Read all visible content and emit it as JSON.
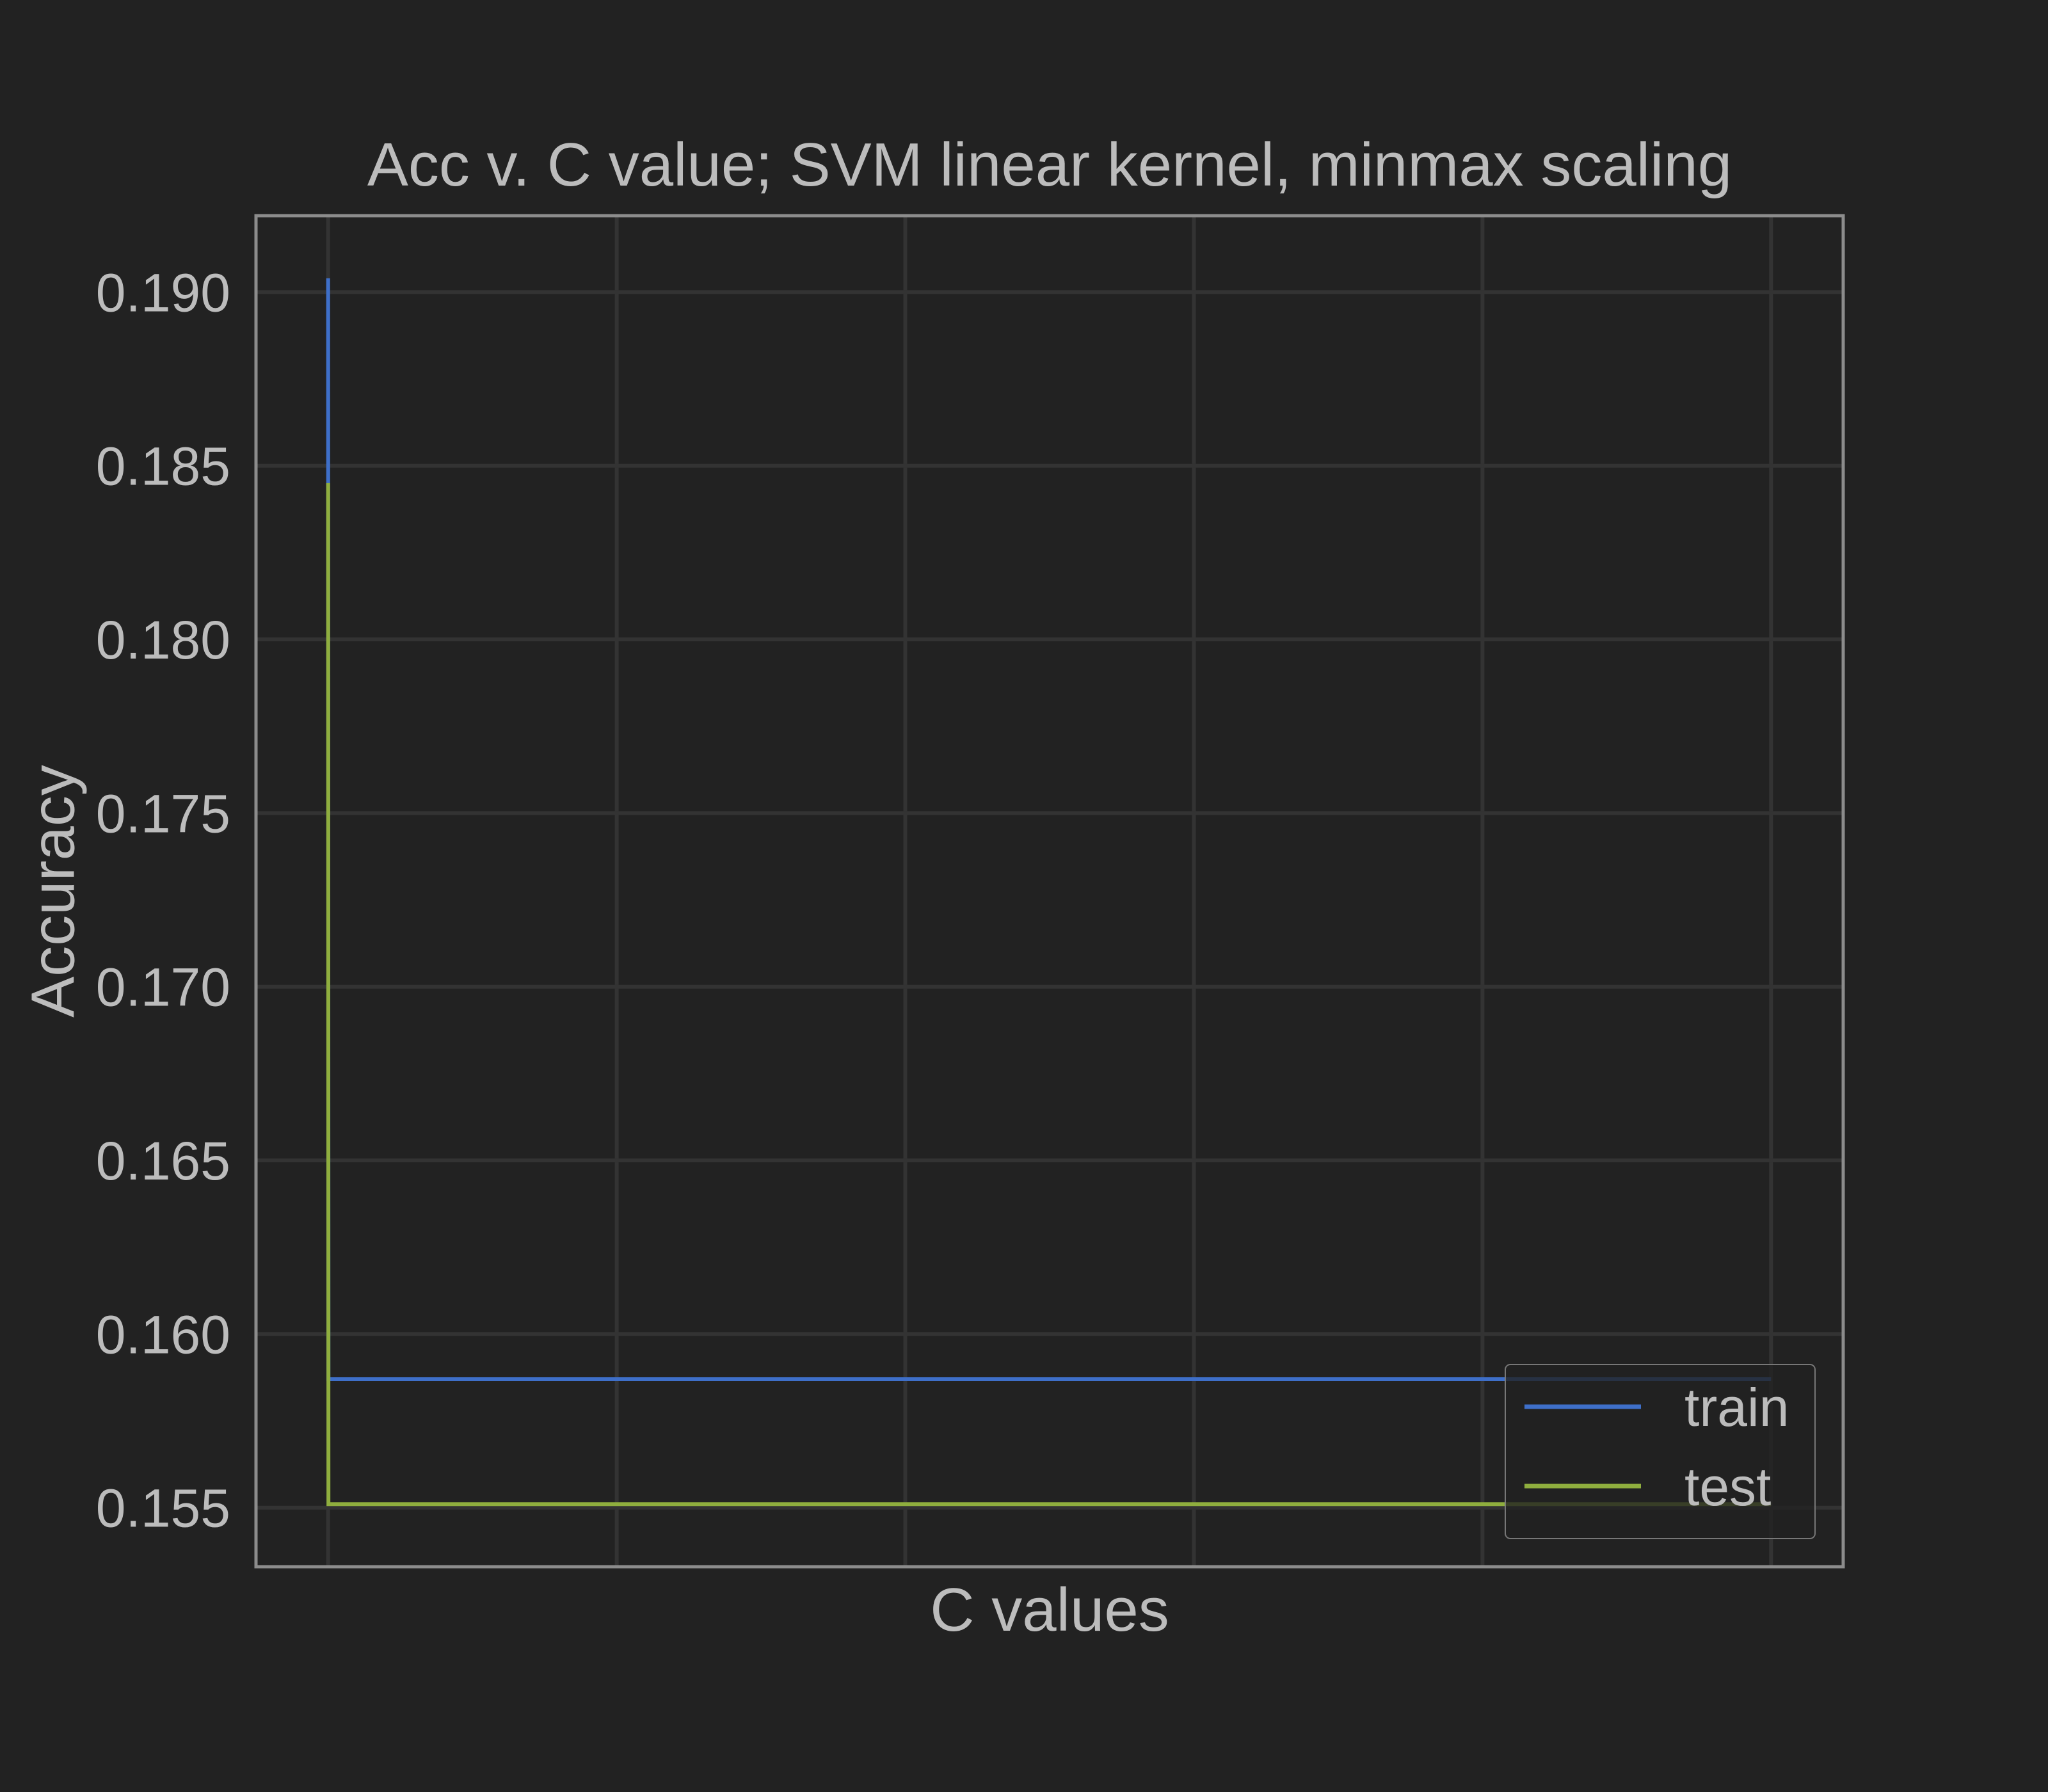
{
  "chart_data": {
    "type": "line",
    "title": "Acc v. C value; SVM linear kernel,  minmax scaling",
    "xlabel": "C values",
    "ylabel": "Accuracy",
    "x": [
      0,
      10,
      20,
      30,
      40,
      50
    ],
    "xlim": [
      -2.5,
      52.5
    ],
    "ylim": [
      0.1533,
      0.1922
    ],
    "yticks": [
      0.155,
      0.16,
      0.165,
      0.17,
      0.175,
      0.18,
      0.185,
      0.19
    ],
    "ytick_labels": [
      "0.155",
      "0.160",
      "0.165",
      "0.170",
      "0.175",
      "0.180",
      "0.185",
      "0.190"
    ],
    "grid": true,
    "legend_position": "lower right",
    "series": [
      {
        "name": "train",
        "color": "#3e6fc9",
        "points": [
          [
            0,
            0.1904
          ],
          [
            0.01,
            0.1587
          ],
          [
            50,
            0.1587
          ]
        ]
      },
      {
        "name": "test",
        "color": "#8fae3e",
        "points": [
          [
            0,
            0.1845
          ],
          [
            0.01,
            0.1551
          ],
          [
            50,
            0.1551
          ]
        ]
      }
    ]
  },
  "colors": {
    "background": "#222222",
    "grid": "#333333",
    "axes_edge": "#8c8c8c",
    "text": "#bcbcbc"
  }
}
